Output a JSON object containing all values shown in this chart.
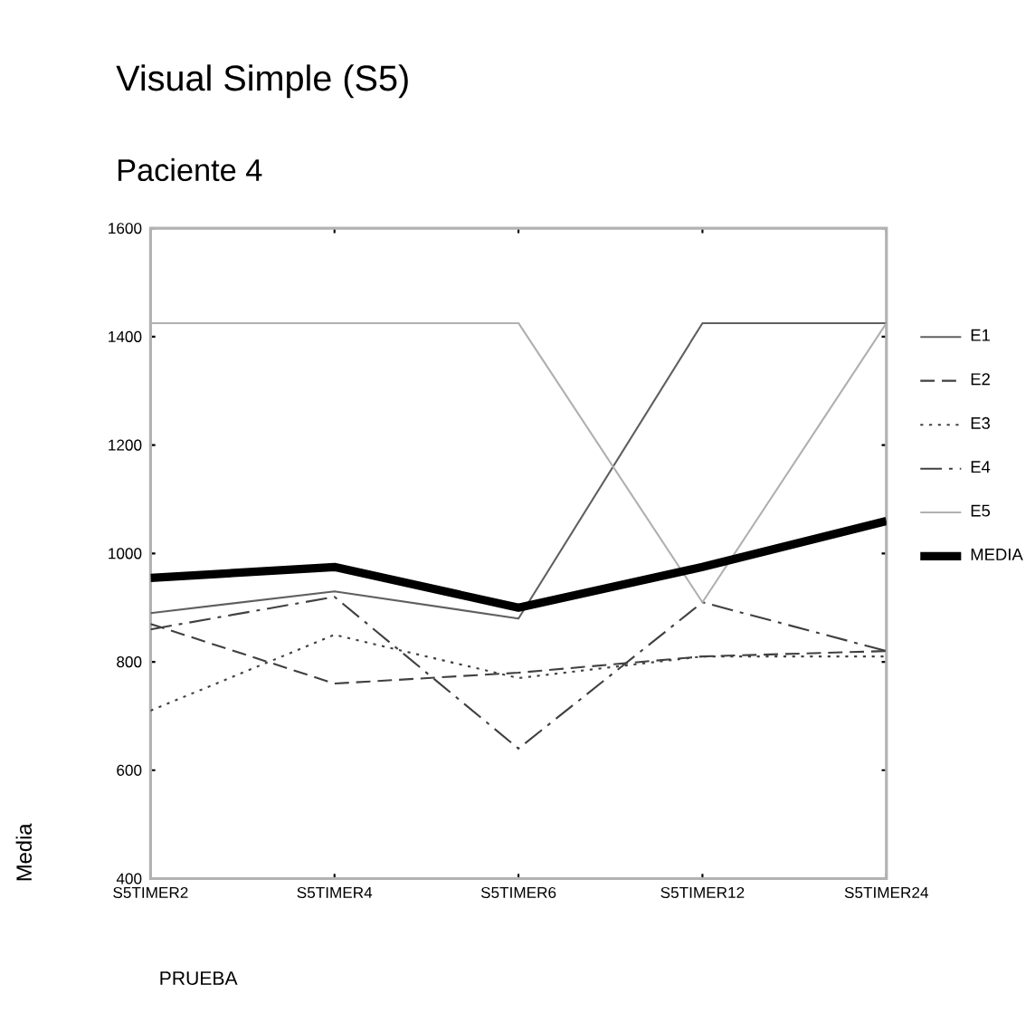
{
  "chart_data": {
    "type": "line",
    "title": "Visual Simple (S5)",
    "subtitle": "Paciente 4",
    "xlabel": "PRUEBA",
    "ylabel": "Media",
    "categories": [
      "S5TIMER2",
      "S5TIMER4",
      "S5TIMER6",
      "S5TIMER12",
      "S5TIMER24"
    ],
    "ylim": [
      400,
      1600
    ],
    "yticks": [
      400,
      600,
      800,
      1000,
      1200,
      1400,
      1600
    ],
    "legend": "right",
    "marker": "none",
    "series": [
      {
        "name": "E1",
        "color": "#606060",
        "line_style": "solid",
        "values": [
          890,
          930,
          880,
          1425,
          1425
        ]
      },
      {
        "name": "E2",
        "color": "#404040",
        "line_style": "dashed",
        "values": [
          870,
          760,
          780,
          810,
          820
        ]
      },
      {
        "name": "E3",
        "color": "#404040",
        "line_style": "dotted",
        "values": [
          710,
          850,
          770,
          810,
          810
        ]
      },
      {
        "name": "E4",
        "color": "#404040",
        "line_style": "dashdot",
        "values": [
          860,
          920,
          640,
          910,
          820
        ]
      },
      {
        "name": "E5",
        "color": "#b0b0b0",
        "line_style": "solid",
        "values": [
          1425,
          1425,
          1425,
          910,
          1425
        ]
      },
      {
        "name": "MEDIA",
        "color": "#000000",
        "line_style": "solid",
        "values": [
          955,
          975,
          900,
          975,
          1060
        ]
      }
    ]
  }
}
